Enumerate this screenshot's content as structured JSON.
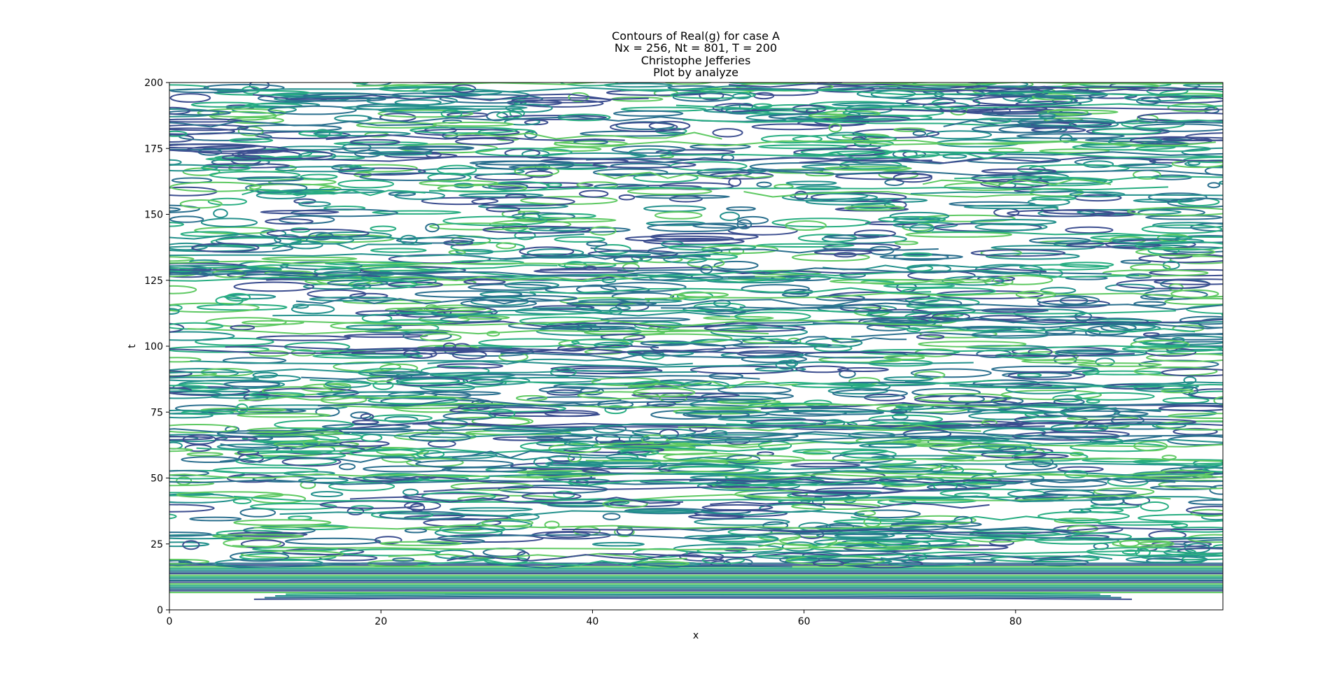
{
  "chart_data": {
    "type": "contour",
    "title_lines": [
      "Contours of Real(g) for case A",
      "Nx = 256, Nt = 801, T = 200",
      "Christophe Jefferies",
      "Plot by analyze"
    ],
    "xlabel": "x",
    "ylabel": "t",
    "xlim": [
      0,
      99.6
    ],
    "ylim": [
      0,
      200
    ],
    "xticks": [
      0,
      20,
      40,
      60,
      80
    ],
    "xtick_labels": [
      "0",
      "20",
      "40",
      "60",
      "80"
    ],
    "yticks": [
      0,
      25,
      50,
      75,
      100,
      125,
      150,
      175,
      200
    ],
    "ytick_labels": [
      "0",
      "25",
      "50",
      "75",
      "100",
      "125",
      "150",
      "175",
      "200"
    ],
    "grid": false,
    "colormap": [
      "#3b4d8f",
      "#2a6f8e",
      "#23908c",
      "#27ad81",
      "#5ec962"
    ]
  }
}
